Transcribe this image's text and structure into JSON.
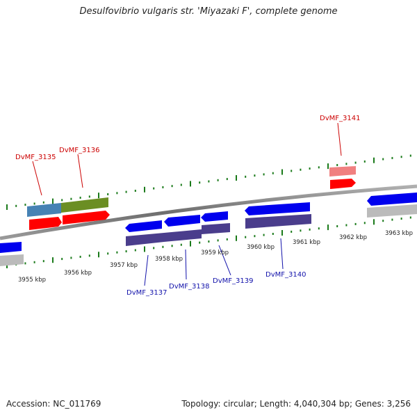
{
  "title": "Desulfovibrio vulgaris str. 'Miyazaki F', complete genome",
  "footer": {
    "accession": "Accession: NC_011769",
    "summary": "Topology: circular; Length: 4,040,304 bp; Genes: 3,256"
  },
  "kbp_labels": [
    "3955 kbp",
    "3956 kbp",
    "3957 kbp",
    "3958 kbp",
    "3959 kbp",
    "3960 kbp",
    "3961 kbp",
    "3962 kbp",
    "3963 kbp"
  ],
  "gene_labels": {
    "g3135": "DvMF_3135",
    "g3136": "DvMF_3136",
    "g3137": "DvMF_3137",
    "g3138": "DvMF_3138",
    "g3139": "DvMF_3139",
    "g3140": "DvMF_3140",
    "g3141": "DvMF_3141"
  },
  "colors": {
    "forward_gene": "#ff0000",
    "reverse_gene": "#0000ee",
    "reverse_cds": "#4a3d8c",
    "steelblue_feature": "#4682b4",
    "olive_feature": "#6b8e23",
    "pink_feature": "#f08080",
    "grey_feature": "#bbbbbb",
    "tick": "#1a7a1a",
    "backbone": "#808080"
  }
}
